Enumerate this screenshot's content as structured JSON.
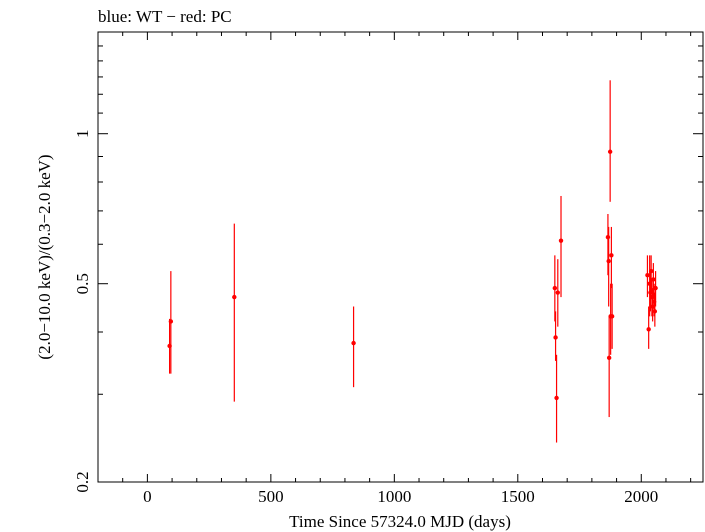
{
  "chart_data": {
    "type": "scatter",
    "title": "blue: WT − red: PC",
    "xlabel": "Time Since 57324.0 MJD (days)",
    "ylabel": "(2.0−10.0 keV)/(0.3−2.0 keV)",
    "xlim": [
      -200,
      2250
    ],
    "ylim": [
      0.2,
      1.6
    ],
    "yscale": "log",
    "xticks": [
      0,
      500,
      1000,
      1500,
      2000
    ],
    "xtick_labels": [
      "0",
      "500",
      "1000",
      "1500",
      "2000"
    ],
    "yticks": [
      0.2,
      0.5,
      1
    ],
    "ytick_labels": [
      "0.2",
      "0.5",
      "1"
    ],
    "grid": false,
    "series": [
      {
        "name": "PC",
        "color": "#ff0000",
        "points": [
          {
            "x": 90,
            "y": 0.375,
            "ylo": 0.33,
            "yhi": 0.425
          },
          {
            "x": 95,
            "y": 0.42,
            "ylo": 0.33,
            "yhi": 0.53
          },
          {
            "x": 352,
            "y": 0.47,
            "ylo": 0.29,
            "yhi": 0.66
          },
          {
            "x": 835,
            "y": 0.38,
            "ylo": 0.31,
            "yhi": 0.45
          },
          {
            "x": 1650,
            "y": 0.49,
            "ylo": 0.42,
            "yhi": 0.57
          },
          {
            "x": 1653,
            "y": 0.39,
            "ylo": 0.35,
            "yhi": 0.44
          },
          {
            "x": 1657,
            "y": 0.295,
            "ylo": 0.24,
            "yhi": 0.36
          },
          {
            "x": 1662,
            "y": 0.48,
            "ylo": 0.41,
            "yhi": 0.56
          },
          {
            "x": 1675,
            "y": 0.61,
            "ylo": 0.47,
            "yhi": 0.75
          },
          {
            "x": 1865,
            "y": 0.62,
            "ylo": 0.52,
            "yhi": 0.69
          },
          {
            "x": 1868,
            "y": 0.555,
            "ylo": 0.45,
            "yhi": 0.65
          },
          {
            "x": 1870,
            "y": 0.355,
            "ylo": 0.27,
            "yhi": 0.43
          },
          {
            "x": 1874,
            "y": 0.92,
            "ylo": 0.73,
            "yhi": 1.28
          },
          {
            "x": 1876,
            "y": 0.43,
            "ylo": 0.36,
            "yhi": 0.5
          },
          {
            "x": 1879,
            "y": 0.57,
            "ylo": 0.49,
            "yhi": 0.65
          },
          {
            "x": 1882,
            "y": 0.43,
            "ylo": 0.37,
            "yhi": 0.5
          },
          {
            "x": 2025,
            "y": 0.52,
            "ylo": 0.47,
            "yhi": 0.57
          },
          {
            "x": 2030,
            "y": 0.405,
            "ylo": 0.37,
            "yhi": 0.45
          },
          {
            "x": 2034,
            "y": 0.5,
            "ylo": 0.43,
            "yhi": 0.57
          },
          {
            "x": 2037,
            "y": 0.48,
            "ylo": 0.44,
            "yhi": 0.53
          },
          {
            "x": 2040,
            "y": 0.53,
            "ylo": 0.48,
            "yhi": 0.57
          },
          {
            "x": 2043,
            "y": 0.47,
            "ylo": 0.43,
            "yhi": 0.51
          },
          {
            "x": 2046,
            "y": 0.45,
            "ylo": 0.42,
            "yhi": 0.49
          },
          {
            "x": 2049,
            "y": 0.51,
            "ylo": 0.47,
            "yhi": 0.55
          },
          {
            "x": 2052,
            "y": 0.46,
            "ylo": 0.43,
            "yhi": 0.5
          },
          {
            "x": 2055,
            "y": 0.44,
            "ylo": 0.41,
            "yhi": 0.48
          },
          {
            "x": 2058,
            "y": 0.49,
            "ylo": 0.45,
            "yhi": 0.53
          }
        ]
      }
    ]
  }
}
